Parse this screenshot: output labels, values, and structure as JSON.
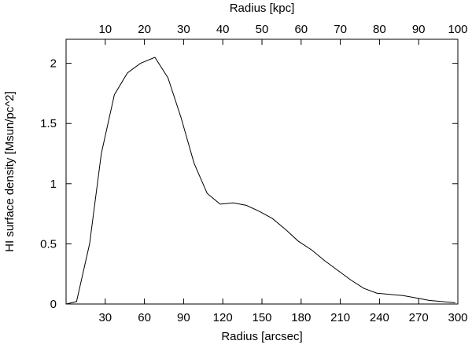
{
  "chart_data": {
    "type": "line",
    "title": "",
    "xlabel": "Radius [arcsec]",
    "x2label": "Radius [kpc]",
    "ylabel": "HI surface density [Msun/pc^2]",
    "xlim": [
      0,
      300
    ],
    "x2lim": [
      0,
      100
    ],
    "ylim": [
      0,
      2.2
    ],
    "xticks": [
      30,
      60,
      90,
      120,
      150,
      180,
      210,
      240,
      270,
      300
    ],
    "x2ticks": [
      10,
      20,
      30,
      40,
      50,
      60,
      70,
      80,
      90,
      100
    ],
    "yticks": [
      0,
      0.5,
      1,
      1.5,
      2
    ],
    "ytick_labels": [
      "0",
      "0.5",
      "1",
      "1.5",
      "2"
    ],
    "grid": false,
    "line_color": "#000000",
    "series": [
      {
        "x": [
          0,
          8,
          18,
          27,
          37,
          47,
          57,
          68,
          78,
          88,
          98,
          108,
          118,
          128,
          138,
          148,
          158,
          168,
          178,
          188,
          198,
          208,
          218,
          228,
          238,
          248,
          258,
          268,
          278,
          288,
          298
        ],
        "y": [
          0,
          0.02,
          0.5,
          1.25,
          1.74,
          1.92,
          2.0,
          2.05,
          1.88,
          1.55,
          1.17,
          0.92,
          0.83,
          0.84,
          0.82,
          0.77,
          0.71,
          0.62,
          0.52,
          0.45,
          0.36,
          0.28,
          0.2,
          0.13,
          0.09,
          0.08,
          0.07,
          0.05,
          0.03,
          0.02,
          0.01
        ]
      }
    ]
  }
}
